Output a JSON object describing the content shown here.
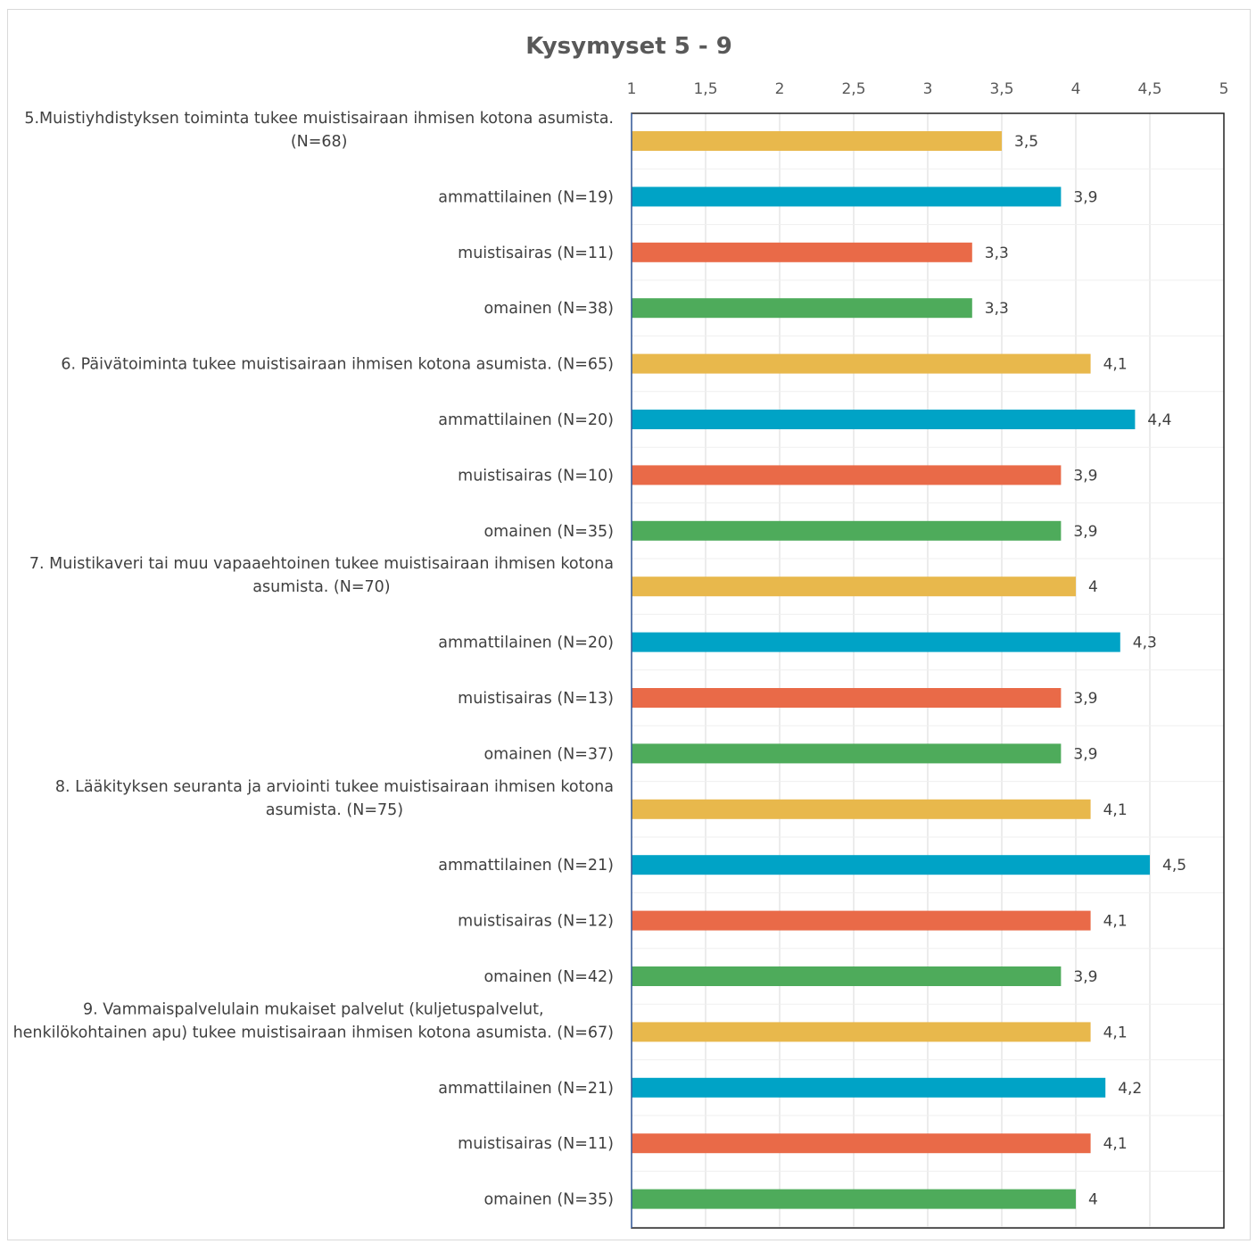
{
  "chart_data": {
    "type": "bar",
    "orientation": "horizontal",
    "title": "Kysymyset 5 - 9",
    "xlim": [
      1,
      5
    ],
    "ticks": [
      "1",
      "1,5",
      "2",
      "2,5",
      "3",
      "3,5",
      "4",
      "4,5",
      "5"
    ],
    "tick_values": [
      1,
      1.5,
      2,
      2.5,
      3,
      3.5,
      4,
      4.5,
      5
    ],
    "grid": true,
    "axis_position": "top",
    "colors": {
      "yhteensa": "#e8b84c",
      "ammattilainen": "#00a3c6",
      "muistisairas": "#e96a48",
      "omainen": "#4eab5b"
    },
    "categories": [
      {
        "lines": [
          "5.Muistiyhdistyksen toiminta tukee muistisairaan ihmisen kotona asumista.",
          "(N=68)"
        ],
        "value": 3.5,
        "label": "3,5",
        "group": "yhteensa"
      },
      {
        "lines": [
          "ammattilainen (N=19)"
        ],
        "value": 3.9,
        "label": "3,9",
        "group": "ammattilainen"
      },
      {
        "lines": [
          "muistisairas (N=11)"
        ],
        "value": 3.3,
        "label": "3,3",
        "group": "muistisairas"
      },
      {
        "lines": [
          "omainen (N=38)"
        ],
        "value": 3.3,
        "label": "3,3",
        "group": "omainen"
      },
      {
        "lines": [
          "6. Päivätoiminta tukee muistisairaan ihmisen kotona asumista. (N=65)"
        ],
        "value": 4.1,
        "label": "4,1",
        "group": "yhteensa"
      },
      {
        "lines": [
          "ammattilainen (N=20)"
        ],
        "value": 4.4,
        "label": "4,4",
        "group": "ammattilainen"
      },
      {
        "lines": [
          "muistisairas (N=10)"
        ],
        "value": 3.9,
        "label": "3,9",
        "group": "muistisairas"
      },
      {
        "lines": [
          "omainen (N=35)"
        ],
        "value": 3.9,
        "label": "3,9",
        "group": "omainen"
      },
      {
        "lines": [
          "7. Muistikaveri tai muu vapaaehtoinen tukee muistisairaan ihmisen kotona",
          "asumista. (N=70)"
        ],
        "value": 4.0,
        "label": "4",
        "group": "yhteensa"
      },
      {
        "lines": [
          "ammattilainen (N=20)"
        ],
        "value": 4.3,
        "label": "4,3",
        "group": "ammattilainen"
      },
      {
        "lines": [
          "muistisairas (N=13)"
        ],
        "value": 3.9,
        "label": "3,9",
        "group": "muistisairas"
      },
      {
        "lines": [
          "omainen (N=37)"
        ],
        "value": 3.9,
        "label": "3,9",
        "group": "omainen"
      },
      {
        "lines": [
          "8. Lääkityksen seuranta ja arviointi tukee muistisairaan ihmisen kotona",
          "asumista. (N=75)"
        ],
        "value": 4.1,
        "label": "4,1",
        "group": "yhteensa"
      },
      {
        "lines": [
          "ammattilainen (N=21)"
        ],
        "value": 4.5,
        "label": "4,5",
        "group": "ammattilainen"
      },
      {
        "lines": [
          "muistisairas (N=12)"
        ],
        "value": 4.1,
        "label": "4,1",
        "group": "muistisairas"
      },
      {
        "lines": [
          "omainen (N=42)"
        ],
        "value": 3.9,
        "label": "3,9",
        "group": "omainen"
      },
      {
        "lines": [
          "9. Vammaispalvelulain mukaiset palvelut (kuljetuspalvelut,",
          "henkilökohtainen apu) tukee muistisairaan ihmisen kotona asumista. (N=67)"
        ],
        "value": 4.1,
        "label": "4,1",
        "group": "yhteensa"
      },
      {
        "lines": [
          "ammattilainen (N=21)"
        ],
        "value": 4.2,
        "label": "4,2",
        "group": "ammattilainen"
      },
      {
        "lines": [
          "muistisairas (N=11)"
        ],
        "value": 4.1,
        "label": "4,1",
        "group": "muistisairas"
      },
      {
        "lines": [
          "omainen (N=35)"
        ],
        "value": 4.0,
        "label": "4",
        "group": "omainen"
      }
    ]
  }
}
